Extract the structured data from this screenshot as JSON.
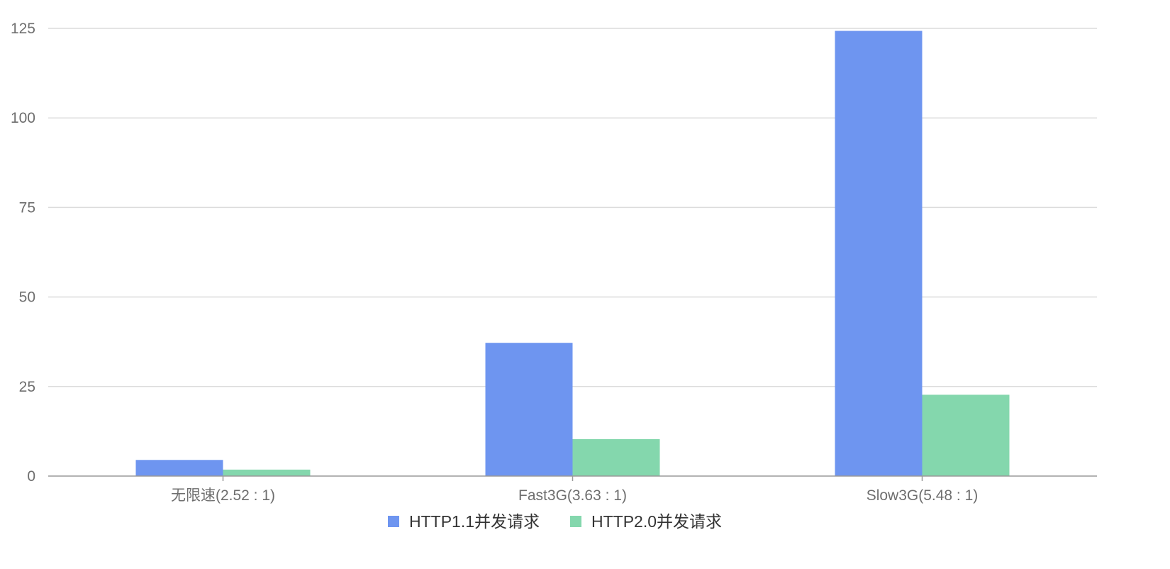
{
  "chart_data": {
    "type": "bar",
    "categories": [
      "无限速(2.52 : 1)",
      "Fast3G(3.63 : 1)",
      "Slow3G(5.48 : 1)"
    ],
    "series": [
      {
        "name": "HTTP1.1并发请求",
        "color": "#6e95f0",
        "values": [
          4.5,
          37.2,
          124.3
        ]
      },
      {
        "name": "HTTP2.0并发请求",
        "color": "#84d7ad",
        "values": [
          1.8,
          10.3,
          22.7
        ]
      }
    ],
    "yticks": [
      0,
      25,
      50,
      75,
      100,
      125
    ],
    "ylim": [
      0,
      125
    ],
    "grid": true,
    "legend_position": "bottom-center",
    "title": "",
    "xlabel": "",
    "ylabel": ""
  }
}
